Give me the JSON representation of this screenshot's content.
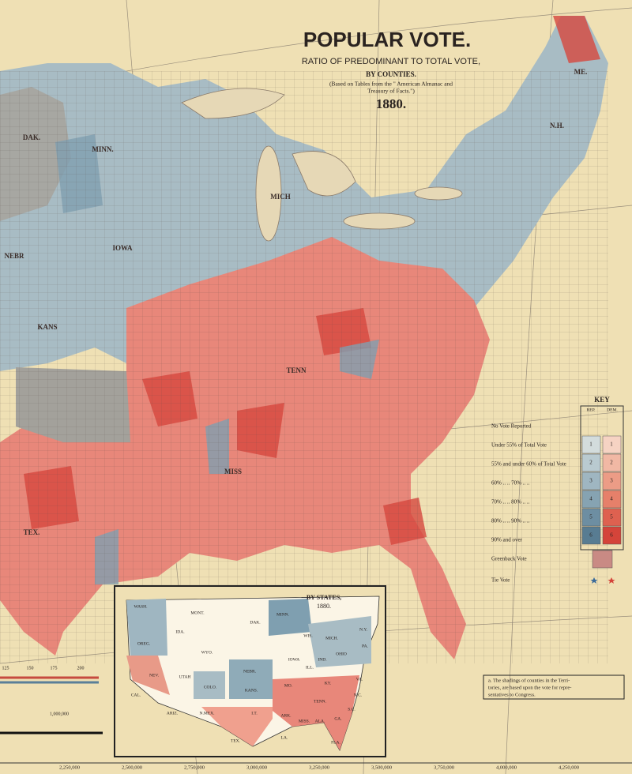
{
  "title": {
    "heading": "POPULAR VOTE.",
    "superscript": "a",
    "subtitle": "RATIO OF PREDOMINANT TO TOTAL VOTE,",
    "byline": "BY COUNTIES.",
    "source_line1": "(Based on Tables from the \" American Almanac and",
    "source_line2": "Treasury of Facts.\")",
    "year": "1880."
  },
  "key": {
    "title": "KEY",
    "columns": [
      "REP.",
      "DEM."
    ],
    "rows": [
      {
        "label": "No Vote Reported"
      },
      {
        "label": "Under 55% of Total Vote",
        "rep": "1",
        "dem": "1"
      },
      {
        "label": "55% and under 60% of Total Vote",
        "rep": "2",
        "dem": "2"
      },
      {
        "label": "60% .. .. 70% .. ..",
        "rep": "3",
        "dem": "3"
      },
      {
        "label": "70% .. .. 80% .. ..",
        "rep": "4",
        "dem": "4"
      },
      {
        "label": "80% .. .. 90% .. ..",
        "rep": "5",
        "dem": "5"
      },
      {
        "label": "90% and over",
        "rep": "6",
        "dem": "6"
      },
      {
        "label": "Greenback Vote"
      },
      {
        "label": "Tie Vote"
      }
    ]
  },
  "map_labels": [
    "DAK.",
    "MINN.",
    "IOWA",
    "NEBR",
    "KANS",
    "TEX.",
    "MISS",
    "TENN",
    "MICH",
    "ME.",
    "N.H."
  ],
  "inset": {
    "title": "BY STATES,",
    "year": "1880.",
    "labels": [
      "WASH.",
      "OREG.",
      "IDA.",
      "MONT.",
      "WYO.",
      "DAK.",
      "MINN.",
      "NEV.",
      "CAL.",
      "UTAH",
      "COLO.",
      "NEBR.",
      "KANS.",
      "IOWA",
      "WIS.",
      "MICH.",
      "N.Y.",
      "ARIZ.",
      "N.MEX.",
      "I.T.",
      "TEX.",
      "MO.",
      "ILL.",
      "IND.",
      "OHIO",
      "PA.",
      "KY.",
      "TENN.",
      "ARK.",
      "LA.",
      "MISS.",
      "ALA.",
      "GA.",
      "S.C.",
      "N.C.",
      "VA.",
      "FLA."
    ]
  },
  "note": {
    "line1": "a. The shadings of counties in the Terri-",
    "line2": "tories, are based upon the vote for repre-",
    "line3": "sentatives to Congress."
  },
  "scale_left": [
    "125",
    "150",
    "175",
    "200",
    "1,000,000"
  ],
  "scale_bottom": [
    "2,250,000",
    "2,500,000",
    "2,750,000",
    "3,000,000",
    "3,250,000",
    "3,500,000",
    "3,750,000",
    "4,000,000",
    "4,250,000"
  ]
}
